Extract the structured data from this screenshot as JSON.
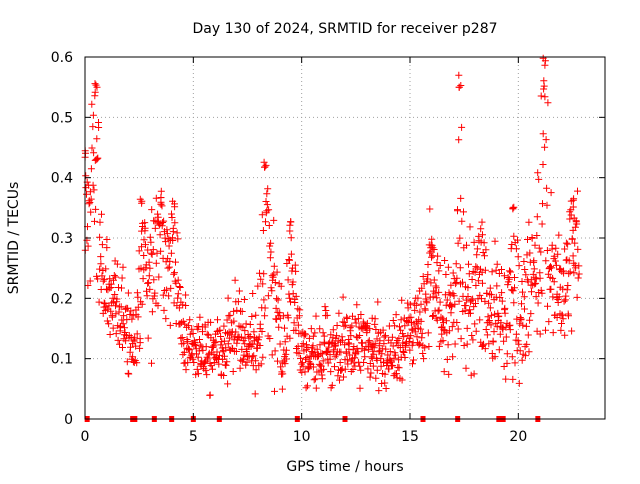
{
  "chart_data": {
    "type": "scatter",
    "title": "Day 130 of 2024, SRMTID for receiver p287",
    "xlabel": "GPS time / hours",
    "ylabel": "SRMTID / TECUs",
    "xlim": [
      0,
      24
    ],
    "ylim": [
      0,
      0.6
    ],
    "x_ticks": [
      0,
      5,
      10,
      15,
      20
    ],
    "x_tick_labels": [
      "0",
      "5",
      "10",
      "15",
      "20"
    ],
    "y_ticks": [
      0,
      0.1,
      0.2,
      0.3,
      0.4,
      0.5,
      0.6
    ],
    "y_tick_labels": [
      "0",
      "0.1",
      "0.2",
      "0.3",
      "0.4",
      "0.5",
      "0.6"
    ],
    "grid": true,
    "marker": "plus",
    "color": "#ff0000",
    "profile": [
      [
        0.0,
        0.27,
        0.06
      ],
      [
        0.25,
        0.32,
        0.08
      ],
      [
        0.5,
        0.26,
        0.07
      ],
      [
        0.8,
        0.24,
        0.05
      ],
      [
        1.1,
        0.2,
        0.04
      ],
      [
        1.5,
        0.19,
        0.04
      ],
      [
        2.0,
        0.15,
        0.04
      ],
      [
        2.3,
        0.13,
        0.03
      ],
      [
        2.6,
        0.18,
        0.04
      ],
      [
        3.0,
        0.25,
        0.07
      ],
      [
        3.5,
        0.27,
        0.06
      ],
      [
        3.9,
        0.24,
        0.05
      ],
      [
        4.2,
        0.19,
        0.04
      ],
      [
        4.6,
        0.14,
        0.03
      ],
      [
        5.0,
        0.12,
        0.03
      ],
      [
        5.5,
        0.11,
        0.03
      ],
      [
        6.0,
        0.1,
        0.03
      ],
      [
        6.5,
        0.12,
        0.03
      ],
      [
        7.0,
        0.15,
        0.04
      ],
      [
        7.5,
        0.12,
        0.03
      ],
      [
        8.0,
        0.13,
        0.04
      ],
      [
        8.4,
        0.24,
        0.07
      ],
      [
        8.8,
        0.2,
        0.06
      ],
      [
        9.2,
        0.1,
        0.04
      ],
      [
        9.6,
        0.18,
        0.06
      ],
      [
        10.0,
        0.11,
        0.03
      ],
      [
        10.5,
        0.1,
        0.03
      ],
      [
        11.0,
        0.12,
        0.03
      ],
      [
        11.5,
        0.11,
        0.03
      ],
      [
        12.0,
        0.12,
        0.03
      ],
      [
        12.5,
        0.13,
        0.03
      ],
      [
        13.0,
        0.12,
        0.03
      ],
      [
        13.5,
        0.11,
        0.03
      ],
      [
        14.0,
        0.11,
        0.03
      ],
      [
        14.5,
        0.12,
        0.03
      ],
      [
        15.0,
        0.14,
        0.03
      ],
      [
        15.5,
        0.17,
        0.04
      ],
      [
        16.0,
        0.22,
        0.05
      ],
      [
        16.5,
        0.15,
        0.04
      ],
      [
        17.0,
        0.18,
        0.05
      ],
      [
        17.5,
        0.22,
        0.06
      ],
      [
        18.0,
        0.18,
        0.05
      ],
      [
        18.5,
        0.17,
        0.05
      ],
      [
        19.0,
        0.2,
        0.05
      ],
      [
        19.5,
        0.13,
        0.04
      ],
      [
        20.0,
        0.16,
        0.04
      ],
      [
        20.5,
        0.22,
        0.05
      ],
      [
        21.0,
        0.26,
        0.06
      ],
      [
        21.5,
        0.23,
        0.05
      ],
      [
        22.0,
        0.22,
        0.05
      ],
      [
        22.5,
        0.24,
        0.05
      ],
      [
        22.8,
        0.25,
        0.05
      ]
    ],
    "spikes": [
      {
        "x": 0.0,
        "peak": 0.45,
        "width": 0.3
      },
      {
        "x": 0.5,
        "peak": 0.56,
        "width": 0.3
      },
      {
        "x": 2.6,
        "peak": 0.37,
        "width": 0.3
      },
      {
        "x": 3.5,
        "peak": 0.37,
        "width": 0.4
      },
      {
        "x": 4.1,
        "peak": 0.37,
        "width": 0.3
      },
      {
        "x": 8.3,
        "peak": 0.43,
        "width": 0.3
      },
      {
        "x": 9.5,
        "peak": 0.33,
        "width": 0.3
      },
      {
        "x": 16.0,
        "peak": 0.3,
        "width": 0.4
      },
      {
        "x": 17.3,
        "peak": 0.57,
        "width": 0.3
      },
      {
        "x": 18.3,
        "peak": 0.33,
        "width": 0.3
      },
      {
        "x": 19.8,
        "peak": 0.36,
        "width": 0.3
      },
      {
        "x": 21.2,
        "peak": 0.6,
        "width": 0.4
      },
      {
        "x": 22.5,
        "peak": 0.37,
        "width": 0.3
      }
    ],
    "zero_markers": [
      0.1,
      2.2,
      2.3,
      3.2,
      4.0,
      5.0,
      6.2,
      9.8,
      12.0,
      15.6,
      17.2,
      19.1,
      19.2,
      19.3,
      20.9
    ],
    "points_per_hour": 60,
    "x_end": 22.8
  }
}
